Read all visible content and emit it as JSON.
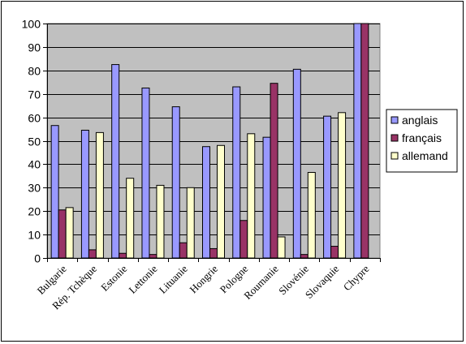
{
  "chart_data": {
    "type": "bar",
    "categories": [
      "Bulgarie",
      "Rép. Tchèque",
      "Estonie",
      "Lettonie",
      "Lituanie",
      "Hongrie",
      "Pologne",
      "Roumanie",
      "Slovénie",
      "Slovaquie",
      "Chypre"
    ],
    "series": [
      {
        "name": "anglais",
        "color": "#9999ff",
        "values": [
          56.5,
          54.5,
          82.5,
          72.5,
          64.5,
          47.5,
          73,
          51.5,
          80.5,
          60.5,
          100
        ]
      },
      {
        "name": "français",
        "color": "#993366",
        "values": [
          20.5,
          3.5,
          2,
          1.5,
          6.5,
          4,
          16,
          74.5,
          1.5,
          5,
          100
        ]
      },
      {
        "name": "allemand",
        "color": "#ffffcc",
        "values": [
          21.5,
          53.5,
          34,
          31,
          30,
          48,
          53,
          9,
          36.5,
          62,
          0
        ]
      }
    ],
    "title": "",
    "xlabel": "",
    "ylabel": "",
    "ylim": [
      0,
      100
    ],
    "yticks": [
      0,
      10,
      20,
      30,
      40,
      50,
      60,
      70,
      80,
      90,
      100
    ],
    "grid": true,
    "legend": "right"
  }
}
